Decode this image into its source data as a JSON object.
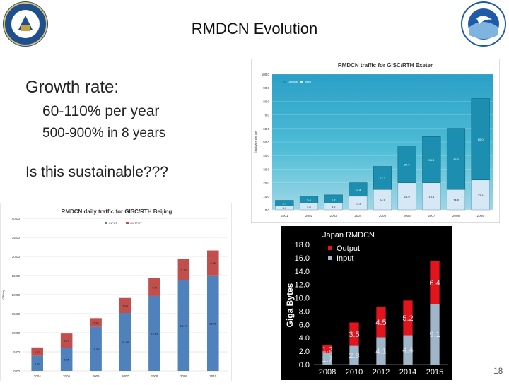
{
  "slide": {
    "title": "RMDCN Evolution",
    "growth_heading": "Growth rate:",
    "growth_rate_1": "60-110% per year",
    "growth_rate_2": "500-900% in 8 years",
    "question": "Is this sustainable???",
    "page_number": "18"
  },
  "colors": {
    "input": "#4f81bd",
    "output": "#c0504d",
    "exeter_top": "#1c8fb0",
    "exeter_bottom": "#d6e8f5"
  },
  "chart_data": [
    {
      "id": "exeter",
      "type": "bar",
      "title": "RMDCN traffic for GISC/RTH Exeter",
      "ylabel": "Gigabytes per day",
      "legend": [
        "Outputs",
        "Input"
      ],
      "categories": [
        "2001",
        "2002",
        "2003",
        "2004",
        "2005",
        "2006",
        "2007",
        "2008",
        "2009"
      ],
      "ylim": [
        0,
        100
      ],
      "yticks": [
        "0.0",
        "10.0",
        "20.0",
        "30.0",
        "40.0",
        "50.0",
        "60.0",
        "70.0",
        "80.0",
        "90.0",
        "100.0"
      ],
      "series": [
        {
          "name": "Input",
          "values": [
            3,
            5,
            5,
            10,
            15,
            20,
            20,
            15,
            22
          ],
          "labels": [
            "3.1",
            "4.6",
            "5.2",
            "10.3",
            "14.8",
            "19.9",
            "19.8",
            "14.8",
            "22.4"
          ]
        },
        {
          "name": "Outputs",
          "values": [
            4,
            5,
            6,
            10,
            17,
            27,
            34,
            45,
            60
          ],
          "labels": [
            "3.7",
            "5.4",
            "6.3",
            "10.4",
            "17.2",
            "27.0",
            "33.8",
            "45.3",
            "60.0"
          ]
        }
      ]
    },
    {
      "id": "beijing",
      "type": "bar",
      "title": "RMDCN daily traffic for GISC/RTH Beijing",
      "ylabel": "GB/day",
      "legend": [
        "INPUT",
        "OUTPUT"
      ],
      "categories": [
        "2004",
        "2005",
        "2006",
        "2007",
        "2008",
        "2009",
        "2010"
      ],
      "ylim": [
        0,
        40
      ],
      "yticks": [
        "0.00",
        "5.00",
        "10.00",
        "15.00",
        "20.00",
        "25.00",
        "30.00",
        "35.00",
        "40.00"
      ],
      "series": [
        {
          "name": "INPUT",
          "values": [
            3.92,
            6.05,
            11.53,
            15.18,
            19.64,
            23.75,
            25.05
          ],
          "labels": [
            "3.92",
            "6.05",
            "11.53",
            "15.18",
            "19.64",
            "23.75",
            "25.05"
          ]
        },
        {
          "name": "OUTPUT",
          "values": [
            2.23,
            3.74,
            2.3,
            3.94,
            4.7,
            5.7,
            6.52
          ],
          "labels": [
            "2.23",
            "3.74",
            "2.30",
            "3.94",
            "4.70",
            "5.70",
            "6.52"
          ]
        }
      ]
    },
    {
      "id": "japan",
      "type": "bar",
      "title": "Japan RMDCN",
      "ylabel": "Giga Bytes",
      "legend": [
        "Output",
        "Input"
      ],
      "categories": [
        "2008",
        "2010",
        "2012",
        "2014",
        "2015"
      ],
      "ylim": [
        0,
        18
      ],
      "yticks": [
        "0.0",
        "2.0",
        "4.0",
        "6.0",
        "8.0",
        "10.0",
        "12.0",
        "14.0",
        "16.0",
        "18.0"
      ],
      "series": [
        {
          "name": "Input",
          "values": [
            1.7,
            2.8,
            4.1,
            4.4,
            9.1
          ],
          "labels": [
            "1.7",
            "2.8",
            "4.1",
            "4.4",
            "9.1"
          ]
        },
        {
          "name": "Output",
          "values": [
            1.2,
            3.5,
            4.5,
            5.2,
            6.4
          ],
          "labels": [
            "1.2",
            "3.5",
            "4.5",
            "5.2",
            "6.4"
          ]
        }
      ]
    }
  ]
}
